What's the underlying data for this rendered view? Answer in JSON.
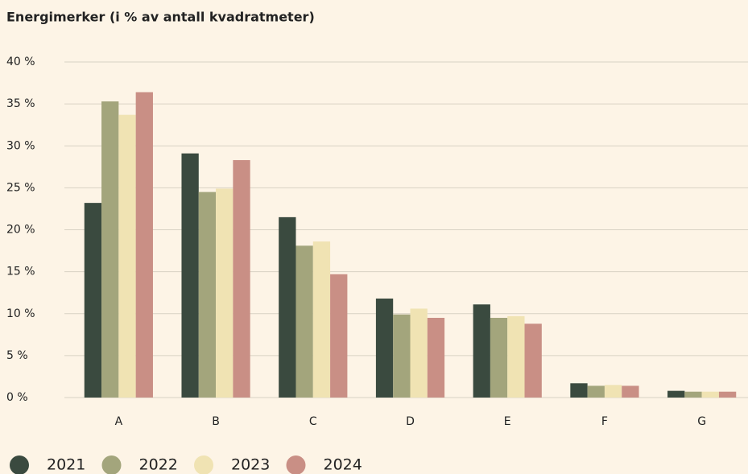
{
  "chart_data": {
    "type": "bar",
    "title": "Energimerker (i % av antall kvadratmeter)",
    "categories": [
      "A",
      "B",
      "C",
      "D",
      "E",
      "F",
      "G"
    ],
    "series": [
      {
        "name": "2021",
        "color": "#3a4a3f",
        "values": [
          23.2,
          29.1,
          21.5,
          11.8,
          11.1,
          1.7,
          0.8
        ]
      },
      {
        "name": "2022",
        "color": "#a3a57c",
        "values": [
          35.3,
          24.5,
          18.1,
          9.9,
          9.5,
          1.4,
          0.7
        ]
      },
      {
        "name": "2023",
        "color": "#f0e3b3",
        "values": [
          33.7,
          24.9,
          18.6,
          10.6,
          9.7,
          1.5,
          0.7
        ]
      },
      {
        "name": "2024",
        "color": "#c98f85",
        "values": [
          36.4,
          28.3,
          14.7,
          9.5,
          8.8,
          1.4,
          0.7
        ]
      }
    ],
    "ylim": [
      0,
      40
    ],
    "yticks": [
      {
        "value": 0,
        "label": "0 %"
      },
      {
        "value": 5,
        "label": "5 %"
      },
      {
        "value": 10,
        "label": "10 %"
      },
      {
        "value": 15,
        "label": "15 %"
      },
      {
        "value": 20,
        "label": "20 %"
      },
      {
        "value": 25,
        "label": "25 %"
      },
      {
        "value": 30,
        "label": "30 %"
      },
      {
        "value": 35,
        "label": "35 %"
      },
      {
        "value": 40,
        "label": "40 %"
      }
    ],
    "grid": true,
    "legend": "bottom"
  }
}
